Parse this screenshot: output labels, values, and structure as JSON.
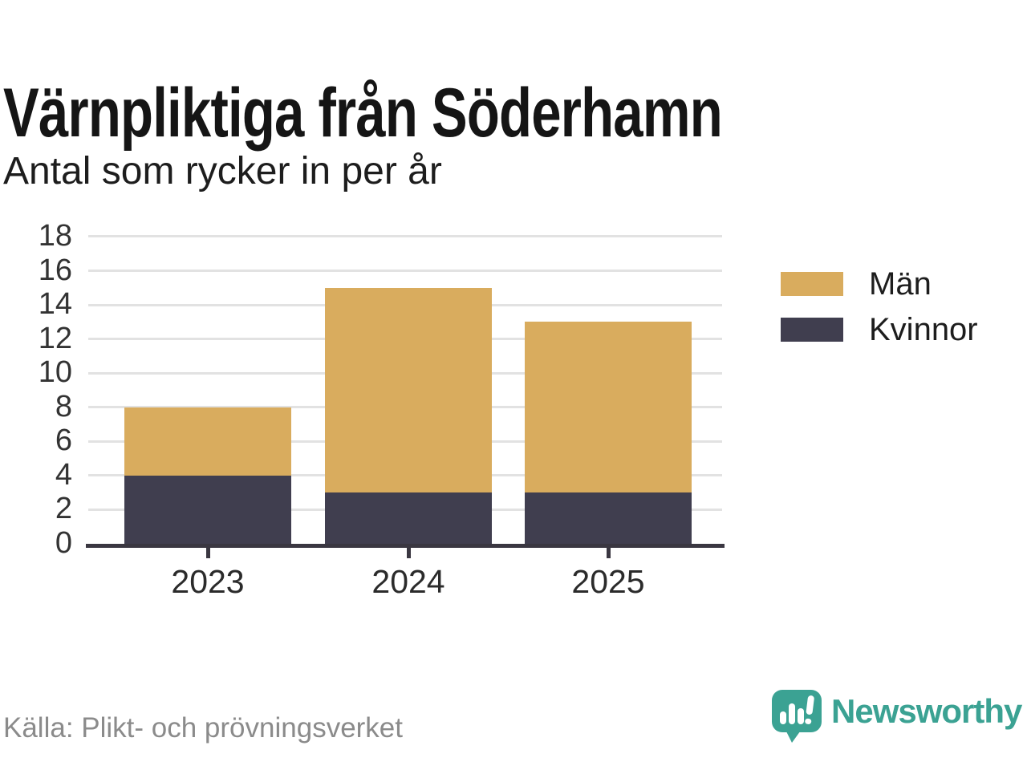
{
  "title": "Värnpliktiga från Söderhamn",
  "subtitle": "Antal som rycker in per år",
  "source": "Källa: Plikt- och prövningsverket",
  "brand": {
    "name": "Newsworthy",
    "color": "#3ba293"
  },
  "colors": {
    "men": "#d9ac5e",
    "women": "#403e4f",
    "axis": "#3a3741",
    "gridline": "#e2e2e2",
    "tick_label": "#333333",
    "muted": "#8b8b8b",
    "background": "#ffffff"
  },
  "legend": {
    "items": [
      {
        "label": "Män",
        "color": "#d9ac5e"
      },
      {
        "label": "Kvinnor",
        "color": "#403e4f"
      }
    ]
  },
  "chart_data": {
    "type": "bar",
    "stacked": true,
    "title": "Värnpliktiga från Söderhamn",
    "subtitle": "Antal som rycker in per år",
    "categories": [
      "2023",
      "2024",
      "2025"
    ],
    "series": [
      {
        "name": "Kvinnor",
        "slug": "kvinnor",
        "color": "#403e4f",
        "values": [
          4,
          3,
          3
        ]
      },
      {
        "name": "Män",
        "slug": "man",
        "color": "#d9ac5e",
        "values": [
          4,
          12,
          10
        ]
      }
    ],
    "totals": [
      8,
      15,
      13
    ],
    "xlabel": "",
    "ylabel": "",
    "ylim": [
      0,
      18
    ],
    "yticks": [
      0,
      2,
      4,
      6,
      8,
      10,
      12,
      14,
      16,
      18
    ],
    "grid": true,
    "legend_position": "right"
  }
}
